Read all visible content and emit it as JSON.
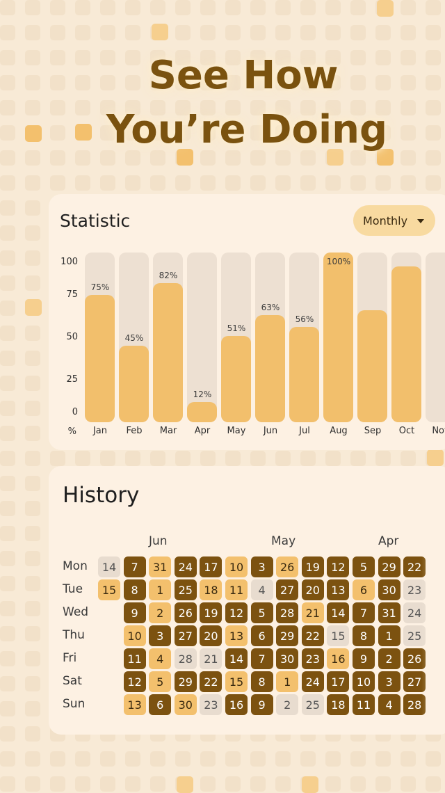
{
  "headline": {
    "line1": "See How",
    "line2": "You’re Doing"
  },
  "colors": {
    "background": "#f8ead6",
    "card": "#fdf1e3",
    "accent_light": "#f3c06d",
    "accent_dark": "#7c5210",
    "empty": "#e8dccf",
    "text_brand": "#7a520f"
  },
  "statistic": {
    "title": "Statistic",
    "period": "Monthly",
    "period_icon": "chevron-down-icon",
    "y_unit": "%"
  },
  "chart_data": {
    "type": "bar",
    "categories": [
      "Jan",
      "Feb",
      "Mar",
      "Apr",
      "May",
      "Jun",
      "Jul",
      "Aug",
      "Sep",
      "Oct",
      "Nov"
    ],
    "values": [
      75,
      45,
      82,
      12,
      51,
      63,
      56,
      100,
      66,
      92,
      null
    ],
    "labels": [
      "75%",
      "45%",
      "82%",
      "12%",
      "51%",
      "63%",
      "56%",
      "100%",
      "",
      "",
      ""
    ],
    "yticks": [
      "100",
      "75",
      "50",
      "25",
      "0"
    ],
    "ylim": [
      0,
      100
    ]
  },
  "history": {
    "title": "History",
    "months": [
      "Jun",
      "May",
      "Apr"
    ],
    "weekdays": [
      "Mon",
      "Tue",
      "Wed",
      "Thu",
      "Fri",
      "Sat",
      "Sun"
    ],
    "columns": [
      [
        [
          "14",
          0
        ],
        [
          "15",
          1
        ],
        null,
        null,
        null,
        null,
        null
      ],
      [
        [
          "7",
          2
        ],
        [
          "8",
          2
        ],
        [
          "9",
          2
        ],
        [
          "10",
          1
        ],
        [
          "11",
          2
        ],
        [
          "12",
          2
        ],
        [
          "13",
          1
        ]
      ],
      [
        [
          "31",
          1
        ],
        [
          "1",
          1
        ],
        [
          "2",
          1
        ],
        [
          "3",
          2
        ],
        [
          "4",
          1
        ],
        [
          "5",
          1
        ],
        [
          "6",
          2
        ]
      ],
      [
        [
          "24",
          2
        ],
        [
          "25",
          2
        ],
        [
          "26",
          2
        ],
        [
          "27",
          2
        ],
        [
          "28",
          0
        ],
        [
          "29",
          2
        ],
        [
          "30",
          1
        ]
      ],
      [
        [
          "17",
          2
        ],
        [
          "18",
          1
        ],
        [
          "19",
          2
        ],
        [
          "20",
          2
        ],
        [
          "21",
          0
        ],
        [
          "22",
          2
        ],
        [
          "23",
          0
        ]
      ],
      [
        [
          "10",
          1
        ],
        [
          "11",
          1
        ],
        [
          "12",
          2
        ],
        [
          "13",
          1
        ],
        [
          "14",
          2
        ],
        [
          "15",
          1
        ],
        [
          "16",
          2
        ]
      ],
      [
        [
          "3",
          2
        ],
        [
          "4",
          0
        ],
        [
          "5",
          2
        ],
        [
          "6",
          2
        ],
        [
          "7",
          2
        ],
        [
          "8",
          2
        ],
        [
          "9",
          2
        ]
      ],
      [
        [
          "26",
          1
        ],
        [
          "27",
          2
        ],
        [
          "28",
          2
        ],
        [
          "29",
          2
        ],
        [
          "30",
          2
        ],
        [
          "1",
          1
        ],
        [
          "2",
          0
        ]
      ],
      [
        [
          "19",
          2
        ],
        [
          "20",
          2
        ],
        [
          "21",
          1
        ],
        [
          "22",
          2
        ],
        [
          "23",
          2
        ],
        [
          "24",
          2
        ],
        [
          "25",
          0
        ]
      ],
      [
        [
          "12",
          2
        ],
        [
          "13",
          2
        ],
        [
          "14",
          2
        ],
        [
          "15",
          0
        ],
        [
          "16",
          1
        ],
        [
          "17",
          2
        ],
        [
          "18",
          2
        ]
      ],
      [
        [
          "5",
          2
        ],
        [
          "6",
          1
        ],
        [
          "7",
          2
        ],
        [
          "8",
          2
        ],
        [
          "9",
          2
        ],
        [
          "10",
          2
        ],
        [
          "11",
          2
        ]
      ],
      [
        [
          "29",
          2
        ],
        [
          "30",
          2
        ],
        [
          "31",
          2
        ],
        [
          "1",
          2
        ],
        [
          "2",
          2
        ],
        [
          "3",
          2
        ],
        [
          "4",
          2
        ]
      ],
      [
        [
          "22",
          2
        ],
        [
          "23",
          0
        ],
        [
          "24",
          0
        ],
        [
          "25",
          0
        ],
        [
          "26",
          2
        ],
        [
          "27",
          2
        ],
        [
          "28",
          2
        ]
      ]
    ]
  }
}
